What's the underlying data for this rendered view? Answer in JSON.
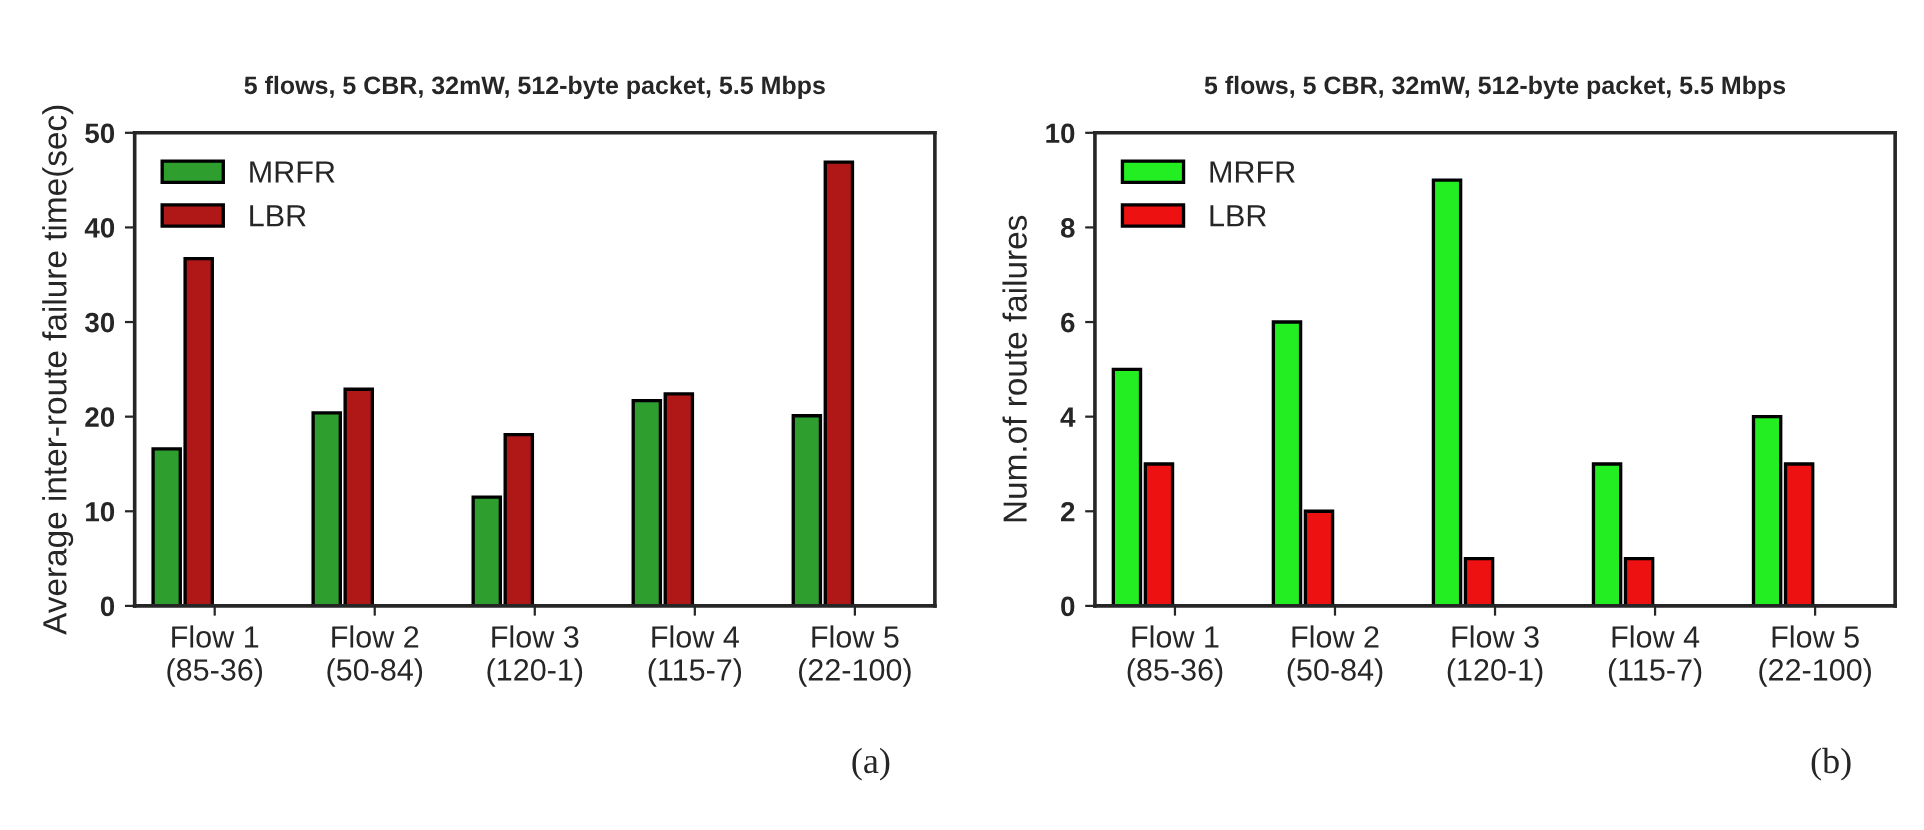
{
  "chart_data": [
    {
      "type": "bar",
      "title": "5 flows, 5 CBR, 32mW, 512-byte packet, 5.5 Mbps",
      "ylabel": "Average inter-route failure time(sec)",
      "categories": [
        "Flow 1\n(85-36)",
        "Flow 2\n(50-84)",
        "Flow 3\n(120-1)",
        "Flow 4\n(115-7)",
        "Flow 5\n(22-100)"
      ],
      "series": [
        {
          "name": "MRFR",
          "color": "#2e9e2e",
          "values": [
            16.6,
            20.4,
            11.5,
            21.7,
            20.1
          ]
        },
        {
          "name": "LBR",
          "color": "#b01818",
          "values": [
            36.7,
            22.9,
            18.1,
            22.4,
            46.9
          ]
        }
      ],
      "ylim": [
        0,
        50
      ],
      "yticks": [
        0,
        10,
        20,
        30,
        40,
        50
      ],
      "legend": "top left",
      "grid": false,
      "annotations": [
        "(a)"
      ]
    },
    {
      "type": "bar",
      "title": "5 flows, 5 CBR, 32mW, 512-byte packet, 5.5 Mbps",
      "ylabel": "Num.of route failures",
      "categories": [
        "Flow 1\n(85-36)",
        "Flow 2\n(50-84)",
        "Flow 3\n(120-1)",
        "Flow 4\n(115-7)",
        "Flow 5\n(22-100)"
      ],
      "series": [
        {
          "name": "MRFR",
          "color": "#22ee22",
          "values": [
            5,
            6,
            9,
            3,
            4
          ]
        },
        {
          "name": "LBR",
          "color": "#ee1111",
          "values": [
            3,
            2,
            1,
            1,
            3
          ]
        }
      ],
      "ylim": [
        0,
        10
      ],
      "yticks": [
        0,
        2,
        4,
        6,
        8,
        10
      ],
      "legend": "top left",
      "grid": false,
      "annotations": [
        "(b)"
      ]
    }
  ]
}
